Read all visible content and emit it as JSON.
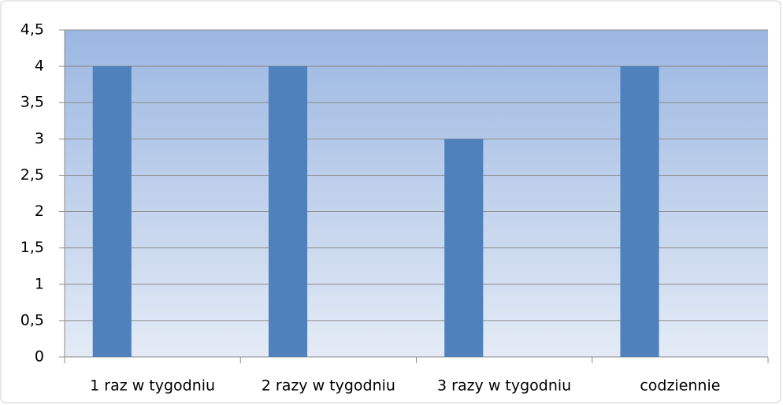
{
  "chart_data": {
    "type": "bar",
    "categories": [
      "1 raz w tygodniu",
      "2 razy w tygodniu",
      "3 razy w tygodniu",
      "codziennie"
    ],
    "values": [
      4,
      4,
      3,
      4
    ],
    "color": "#4f81bd",
    "ylim": [
      0,
      4.5
    ],
    "yticks": [
      0,
      {
        "value": 0.5,
        "label": "0,5"
      },
      1,
      {
        "value": 1.5,
        "label": "1,5"
      },
      2,
      {
        "value": 2.5,
        "label": "2,5"
      },
      3,
      {
        "value": 3.5,
        "label": "3,5"
      },
      4,
      {
        "value": 4.5,
        "label": "4,5"
      }
    ],
    "grid": true
  }
}
